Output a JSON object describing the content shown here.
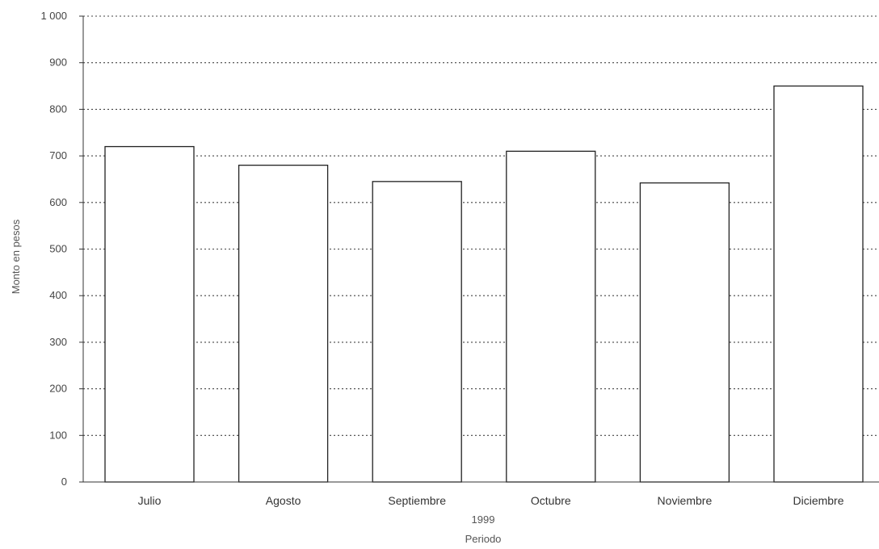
{
  "chart_data": {
    "type": "bar",
    "categories": [
      "Julio",
      "Agosto",
      "Septiembre",
      "Octubre",
      "Noviembre",
      "Diciembre"
    ],
    "values": [
      720,
      680,
      645,
      710,
      642,
      850
    ],
    "xlabel": "Periodo",
    "x_group_label": "1999",
    "ylabel": "Monto en pesos",
    "ylim": [
      0,
      1000
    ],
    "yticks": [
      0,
      100,
      200,
      300,
      400,
      500,
      600,
      700,
      800,
      900,
      1000
    ],
    "ytick_labels": [
      "0",
      "100",
      "200",
      "300",
      "400",
      "500",
      "600",
      "700",
      "800",
      "900",
      "1 000"
    ],
    "grid": "horizontal dotted",
    "bar_color": "#ffffff",
    "edge_color": "#222222"
  }
}
